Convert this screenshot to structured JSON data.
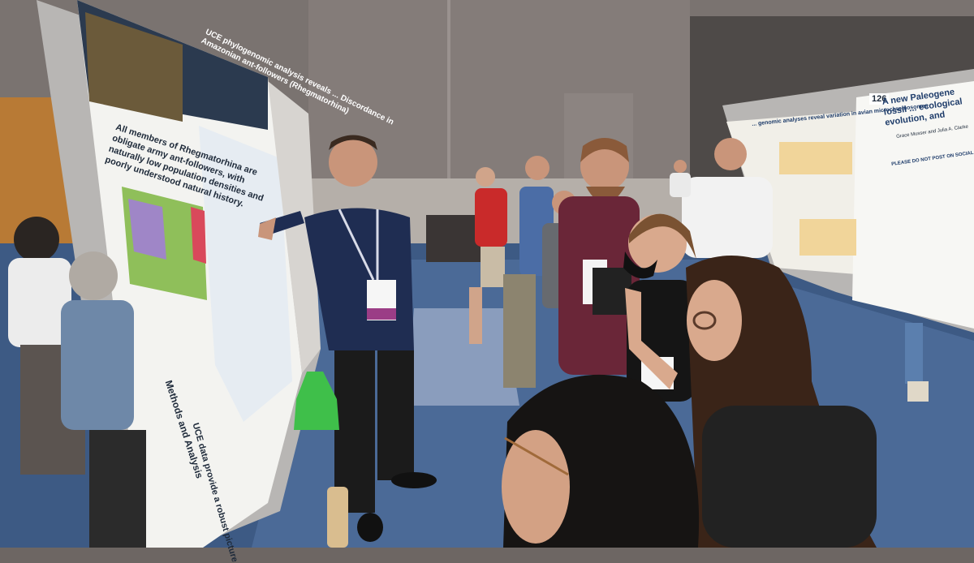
{
  "scene": {
    "main_poster": {
      "title": "UCE phylogenomic analysis reveals ... Discordance in Amazonian ant-followers (Rhegmatorhina)",
      "lead_text": "All members of Rhegmatorhina are obligate army ant-followers, with naturally low population densities and poorly understood natural history.",
      "methods_heading": "Methods and Analysis",
      "uce_heading": "UCE data provide a robust picture"
    },
    "right_poster": {
      "board_number": "126",
      "title": "A new Paleogene fossil ... ecological evolution, and",
      "authors": "Grace Musser and Julia A. Clarke",
      "notice": "PLEASE DO NOT POST ON SOCIAL MEDIA"
    },
    "left_poster": {
      "title": "... genomic analyses reveal variation in avian microchromosomes"
    }
  }
}
